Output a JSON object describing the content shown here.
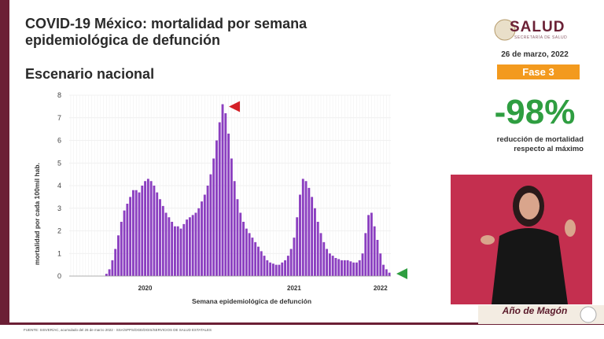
{
  "header": {
    "title": "COVID-19 México: mortalidad por semana epidemiológica de defunción",
    "subtitle": "Escenario nacional"
  },
  "sidebar": {
    "logo": "SALUD",
    "logo_subtitle": "SECRETARÍA DE SALUD",
    "date": "26 de marzo, 2022",
    "phase": "Fase 3",
    "headline": "-98%",
    "headline_note": "reducción de mortalidad respecto al máximo"
  },
  "footer": {
    "source": "FUENTE: SISVER/AC, acumulado del 26 de marzo 2022 · SSA/SPPS/DGE/DGIS/SERVICIOS DE SALUD ESTATALES",
    "banner": "Año de Magón"
  },
  "chart_data": {
    "type": "bar",
    "x_label": "Semana epidemiológica de defunción",
    "y_label": "mortalidad por cada 100mil hab.",
    "color": "#8b3fc0",
    "categories": [
      null,
      null,
      null,
      null,
      null,
      null,
      null,
      null,
      null,
      null,
      null,
      null,
      null,
      null,
      null,
      null,
      null,
      null,
      null,
      null,
      null,
      null,
      null,
      null,
      null,
      "2020",
      null,
      null,
      null,
      null,
      null,
      null,
      null,
      null,
      null,
      null,
      null,
      null,
      null,
      null,
      null,
      null,
      null,
      null,
      null,
      null,
      null,
      null,
      null,
      null,
      null,
      null,
      null,
      null,
      null,
      null,
      null,
      null,
      null,
      null,
      null,
      null,
      null,
      null,
      null,
      null,
      null,
      null,
      null,
      null,
      null,
      null,
      null,
      null,
      null,
      "2021",
      null,
      null,
      null,
      null,
      null,
      null,
      null,
      null,
      null,
      null,
      null,
      null,
      null,
      null,
      null,
      null,
      null,
      null,
      null,
      null,
      null,
      null,
      null,
      null,
      null,
      null,
      null,
      null,
      "2022",
      null,
      null,
      null
    ],
    "values": [
      0,
      0,
      0,
      0,
      0,
      0,
      0,
      0,
      0,
      0,
      0,
      0,
      0.1,
      0.3,
      0.7,
      1.2,
      1.8,
      2.4,
      2.9,
      3.2,
      3.5,
      3.8,
      3.8,
      3.7,
      4.0,
      4.2,
      4.3,
      4.2,
      4.0,
      3.7,
      3.4,
      3.1,
      2.8,
      2.6,
      2.4,
      2.2,
      2.2,
      2.1,
      2.3,
      2.5,
      2.6,
      2.7,
      2.8,
      3.0,
      3.3,
      3.6,
      4.0,
      4.5,
      5.2,
      6.0,
      6.8,
      7.6,
      7.2,
      6.3,
      5.2,
      4.2,
      3.4,
      2.8,
      2.4,
      2.1,
      1.9,
      1.7,
      1.5,
      1.3,
      1.1,
      0.9,
      0.7,
      0.6,
      0.55,
      0.5,
      0.5,
      0.6,
      0.7,
      0.9,
      1.2,
      1.7,
      2.6,
      3.6,
      4.3,
      4.2,
      3.9,
      3.5,
      3.0,
      2.4,
      1.9,
      1.5,
      1.2,
      1.0,
      0.9,
      0.8,
      0.75,
      0.7,
      0.7,
      0.7,
      0.65,
      0.6,
      0.6,
      0.7,
      1.0,
      1.9,
      2.7,
      2.8,
      2.2,
      1.6,
      1.0,
      0.5,
      0.3,
      0.15
    ],
    "ylim": [
      0,
      8
    ],
    "yticks": [
      0,
      1,
      2,
      3,
      4,
      5,
      6,
      7,
      8
    ],
    "grid": true
  }
}
